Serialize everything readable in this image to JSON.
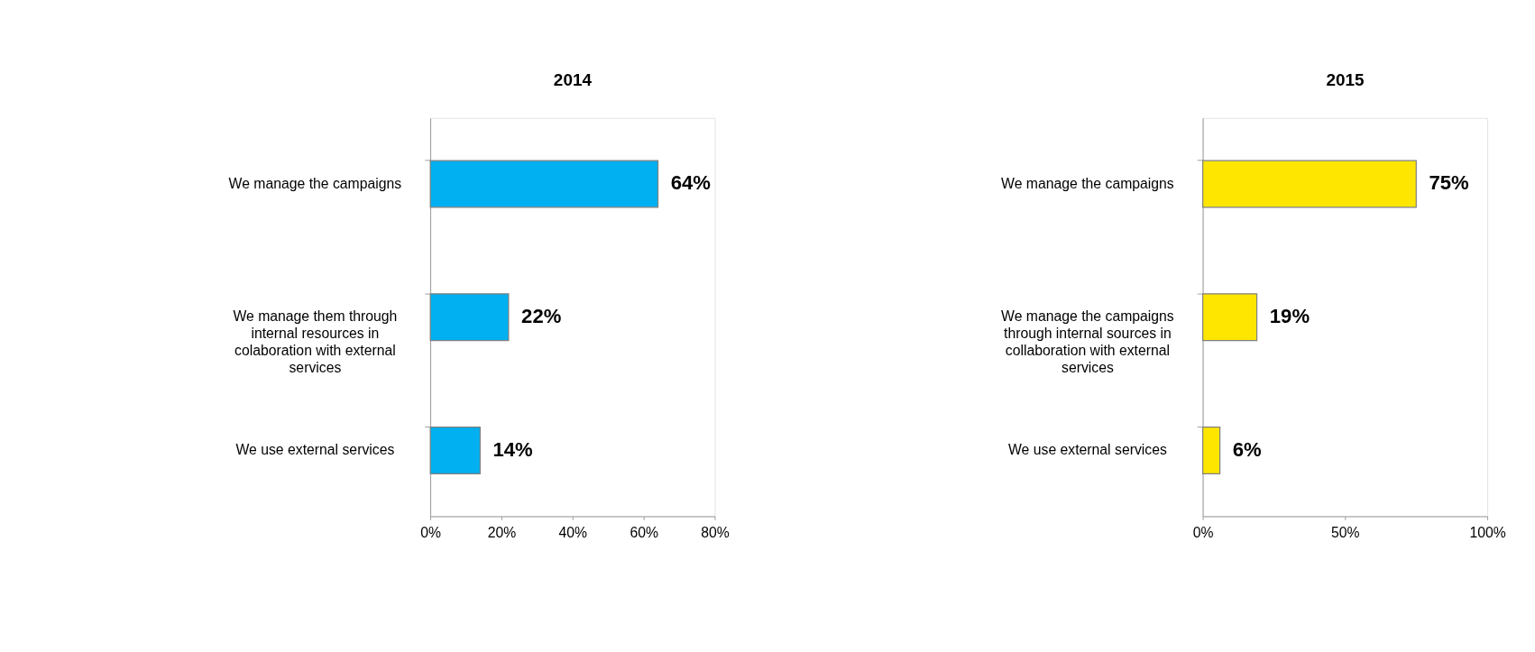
{
  "chart_data": [
    {
      "type": "bar",
      "orientation": "horizontal",
      "title": "2014",
      "categories": [
        "We manage the campaigns",
        "We manage them through internal resources in colaboration with external services",
        "We use external services"
      ],
      "values": [
        64,
        22,
        14
      ],
      "color": "#00b0f0",
      "value_labels": [
        "64%",
        "22%",
        "14%"
      ],
      "xlim": [
        0,
        80
      ],
      "xticks": [
        {
          "value": 0,
          "label": "0%"
        },
        {
          "value": 20,
          "label": "20%"
        },
        {
          "value": 40,
          "label": "40%"
        },
        {
          "value": 60,
          "label": "60%"
        },
        {
          "value": 80,
          "label": "80%"
        }
      ],
      "grid": false
    },
    {
      "type": "bar",
      "orientation": "horizontal",
      "title": "2015",
      "categories": [
        "We manage the campaigns",
        "We manage the campaigns through internal sources in collaboration with external services",
        "We use external services"
      ],
      "values": [
        75,
        19,
        6
      ],
      "color": "#ffe600",
      "value_labels": [
        "75%",
        "19%",
        "6%"
      ],
      "xlim": [
        0,
        100
      ],
      "xticks": [
        {
          "value": 0,
          "label": "0%"
        },
        {
          "value": 50,
          "label": "50%"
        },
        {
          "value": 100,
          "label": "100%"
        }
      ],
      "grid": false
    }
  ]
}
